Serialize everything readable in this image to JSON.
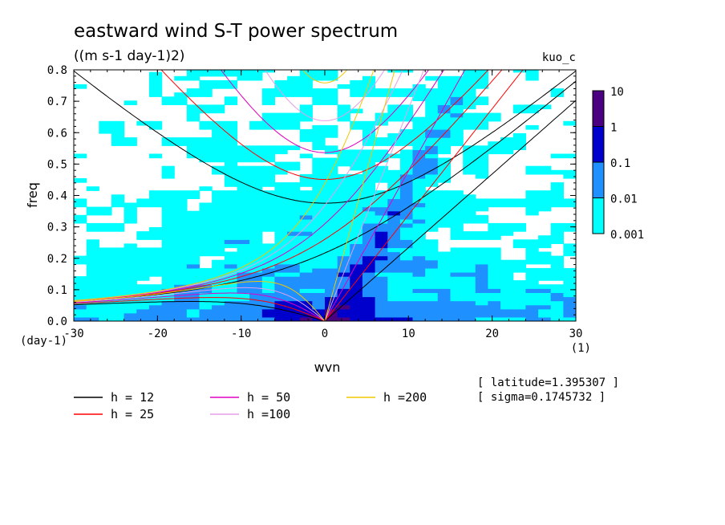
{
  "chart_data": {
    "type": "heatmap",
    "title": "eastward wind S-T power spectrum",
    "subtitle": "((m s-1 day-1)2)",
    "model_tag": "kuo_c",
    "xlabel": "wvn",
    "ylabel": "freq",
    "x_unit": "(1)",
    "y_unit": "(day-1)",
    "xlim": [
      -30,
      30
    ],
    "ylim": [
      0.0,
      0.8
    ],
    "x_ticks": [
      "-30",
      "-20",
      "-10",
      "0",
      "10",
      "20",
      "30"
    ],
    "y_ticks": [
      "0.0",
      "0.1",
      "0.2",
      "0.3",
      "0.4",
      "0.5",
      "0.6",
      "0.7",
      "0.8"
    ],
    "colorbar": {
      "scale": "log",
      "levels": [
        "0.001",
        "0.01",
        "0.1",
        "1",
        "10"
      ],
      "colors": [
        "#00ffff",
        "#1e90ff",
        "#0000cd",
        "#4b0082"
      ]
    },
    "dispersion_curves": [
      {
        "label": "h = 12",
        "h": 12,
        "color": "#000000"
      },
      {
        "label": "h = 25",
        "h": 25,
        "color": "#ff0000"
      },
      {
        "label": "h = 50",
        "h": 50,
        "color": "#e000c0"
      },
      {
        "label": "h =100",
        "h": 100,
        "color": "#e39ee8"
      },
      {
        "label": "h =200",
        "h": 200,
        "color": "#f0c800"
      }
    ],
    "notes": [
      "[ latitude=1.395307 ]",
      "[ sigma=0.1745732 ]"
    ]
  }
}
